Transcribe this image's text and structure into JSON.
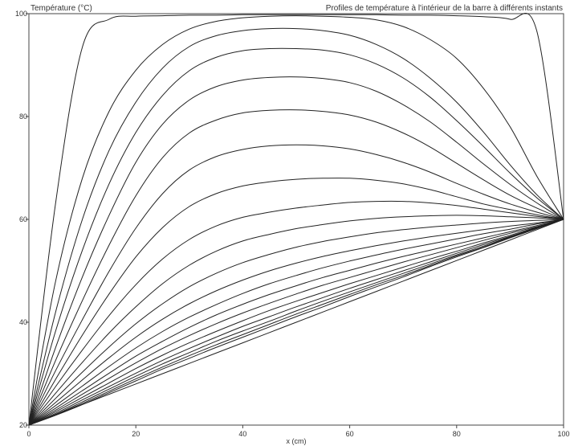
{
  "chart_data": {
    "type": "line",
    "title": "Profiles de température à l'intérieur de la barre à différents instants",
    "ylabel": "Température (°C)",
    "xlabel": "x (cm)",
    "xlim": [
      0,
      100
    ],
    "ylim": [
      20,
      100
    ],
    "x_ticks": [
      0,
      20,
      40,
      60,
      80,
      100
    ],
    "y_ticks": [
      20,
      40,
      60,
      80,
      100
    ],
    "grid": false,
    "x": [
      0,
      5,
      10,
      15,
      20,
      25,
      30,
      35,
      40,
      45,
      50,
      55,
      60,
      65,
      70,
      75,
      80,
      85,
      90,
      95,
      100
    ],
    "series": [
      {
        "values": [
          20,
          63.2,
          93.5,
          98.9,
          99.5,
          99.6,
          99.7,
          99.7,
          99.8,
          99.8,
          99.8,
          99.8,
          99.8,
          99.8,
          99.7,
          99.7,
          99.6,
          99.4,
          98.9,
          96.6,
          60
        ]
      },
      {
        "values": [
          20,
          48,
          68,
          81,
          89,
          94,
          97,
          98.5,
          99.2,
          99.5,
          99.6,
          99.5,
          99.3,
          98.8,
          97.5,
          95,
          91.3,
          85.5,
          78,
          68.4,
          60
        ]
      },
      {
        "values": [
          20,
          42,
          60,
          73.4,
          82.8,
          89.4,
          93.6,
          95.7,
          96.7,
          97.1,
          97.1,
          96.7,
          95.8,
          94,
          91.3,
          87.5,
          82.8,
          77,
          70.6,
          64.8,
          60
        ]
      },
      {
        "values": [
          20,
          38.3,
          54,
          66.9,
          76.9,
          84.1,
          88.9,
          91.5,
          92.8,
          93.2,
          93.2,
          92.9,
          92,
          90.2,
          87.5,
          83.8,
          79.2,
          74.2,
          69,
          64.2,
          60
        ]
      },
      {
        "values": [
          20,
          35.1,
          48.8,
          60.8,
          71.1,
          78.5,
          83.2,
          85.8,
          87.1,
          87.6,
          87.7,
          87.4,
          86.6,
          84.9,
          82.3,
          79,
          75,
          70.8,
          66.8,
          63.2,
          60
        ]
      },
      {
        "values": [
          20,
          32.6,
          44.2,
          55,
          64.6,
          72,
          76.8,
          79.3,
          80.7,
          81.2,
          81.3,
          81,
          80.3,
          78.9,
          76.8,
          74.1,
          70.9,
          67.7,
          64.7,
          62.2,
          60
        ]
      },
      {
        "values": [
          20,
          30.6,
          40.5,
          49.9,
          58.3,
          65,
          69.6,
          72.2,
          73.6,
          74.3,
          74.5,
          74.3,
          73.7,
          72.6,
          71.1,
          69.2,
          67,
          64.9,
          63,
          61.4,
          60
        ]
      },
      {
        "values": [
          20,
          28.9,
          37.5,
          45.5,
          52.7,
          58.4,
          62.5,
          65,
          66.5,
          67.3,
          67.8,
          68,
          68,
          67.6,
          66.9,
          65.8,
          64.4,
          63,
          61.9,
          60.9,
          60
        ]
      },
      {
        "values": [
          20,
          27.5,
          34.6,
          41.3,
          47.3,
          52.3,
          56.1,
          58.7,
          60.4,
          61.4,
          62.2,
          62.8,
          63.3,
          63.5,
          63.5,
          63.2,
          62.7,
          62,
          61.3,
          60.6,
          60
        ]
      },
      {
        "values": [
          20,
          26.2,
          32.2,
          37.9,
          43,
          47.5,
          51.1,
          53.8,
          55.8,
          57.1,
          58.2,
          59,
          59.7,
          60.2,
          60.5,
          60.7,
          60.8,
          60.7,
          60.5,
          60.3,
          60
        ]
      },
      {
        "values": [
          20,
          25.2,
          30.3,
          35.2,
          39.7,
          43.6,
          46.9,
          49.5,
          51.6,
          53.2,
          54.6,
          55.7,
          56.6,
          57.4,
          58,
          58.5,
          58.9,
          59.3,
          59.6,
          59.8,
          60
        ]
      },
      {
        "values": [
          20,
          24.4,
          28.8,
          33.1,
          37.1,
          40.6,
          43.6,
          46.1,
          48.2,
          50,
          51.5,
          52.8,
          53.9,
          54.9,
          55.8,
          56.6,
          57.3,
          58,
          58.7,
          59.3,
          60
        ]
      },
      {
        "values": [
          20,
          23.8,
          27.6,
          31.4,
          35,
          38.2,
          41,
          43.4,
          45.6,
          47.5,
          49.1,
          50.6,
          51.9,
          53.1,
          54.2,
          55.2,
          56.2,
          57.2,
          58.1,
          59.1,
          60
        ]
      },
      {
        "values": [
          20,
          23.3,
          26.7,
          30.1,
          33.4,
          36.3,
          39,
          41.4,
          43.5,
          45.4,
          47.1,
          48.7,
          50.1,
          51.5,
          52.8,
          54,
          55.2,
          56.4,
          57.6,
          58.8,
          60
        ]
      },
      {
        "values": [
          20,
          22.9,
          26,
          29.1,
          32.1,
          34.9,
          37.4,
          39.7,
          41.8,
          43.7,
          45.5,
          47.2,
          48.7,
          50.2,
          51.7,
          53.1,
          54.5,
          55.9,
          57.3,
          58.6,
          60
        ]
      },
      {
        "values": [
          20,
          22.6,
          25.4,
          28.2,
          31,
          33.6,
          36,
          38.2,
          40.3,
          42.3,
          44.1,
          45.8,
          47.5,
          49.1,
          50.7,
          52.3,
          53.8,
          55.4,
          56.9,
          58.5,
          60
        ]
      },
      {
        "values": [
          20,
          22.3,
          24.9,
          27.5,
          30.1,
          32.6,
          34.9,
          37.1,
          39.2,
          41.1,
          43,
          44.8,
          46.6,
          48.3,
          50,
          51.7,
          53.4,
          55.1,
          56.7,
          58.4,
          60
        ]
      },
      {
        "values": [
          20,
          22.1,
          24.5,
          27,
          29.5,
          31.9,
          34.1,
          36.3,
          38.3,
          40.2,
          42.2,
          44.1,
          45.9,
          47.7,
          49.5,
          51.3,
          53.1,
          54.8,
          56.6,
          58.3,
          60
        ]
      },
      {
        "values": [
          20,
          22,
          24.2,
          26.6,
          29,
          31.3,
          33.5,
          35.6,
          37.6,
          39.6,
          41.6,
          43.5,
          45.4,
          47.3,
          49.1,
          51,
          52.9,
          54.6,
          56.5,
          58.3,
          60
        ]
      },
      {
        "values": [
          20,
          21.9,
          24,
          26.3,
          28.6,
          30.9,
          33,
          35.1,
          37.1,
          39.1,
          41.1,
          43,
          45,
          46.9,
          48.8,
          50.8,
          52.7,
          54.5,
          56.4,
          58.2,
          60
        ]
      },
      {
        "values": [
          20,
          22,
          24,
          26,
          28,
          30,
          32,
          34,
          36,
          38,
          40,
          42,
          44,
          46,
          48,
          50,
          52,
          54,
          56,
          58,
          60
        ]
      }
    ]
  }
}
